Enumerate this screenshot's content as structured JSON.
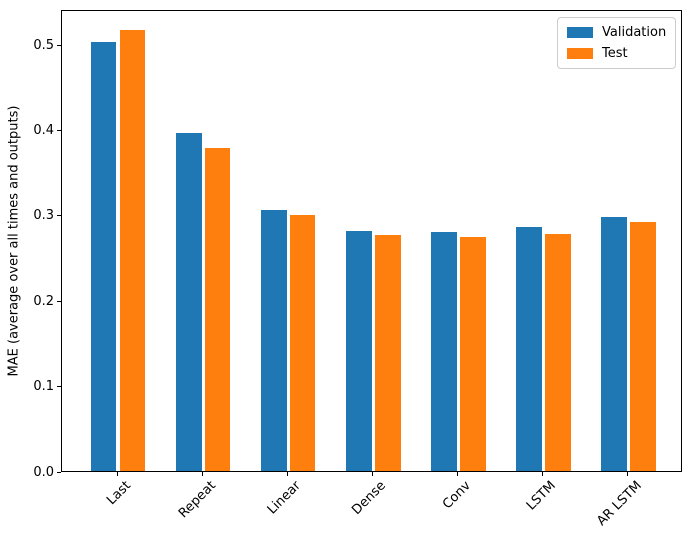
{
  "figure": {
    "background": "#ffffff"
  },
  "chart_data": {
    "type": "bar",
    "title": "",
    "categories": [
      "Last",
      "Repeat",
      "Linear",
      "Dense",
      "Conv",
      "LSTM",
      "AR LSTM"
    ],
    "series": [
      {
        "name": "Validation",
        "color": "#1f77b4",
        "values": [
          0.502,
          0.396,
          0.306,
          0.281,
          0.28,
          0.286,
          0.298
        ]
      },
      {
        "name": "Test",
        "color": "#ff7f0e",
        "values": [
          0.516,
          0.378,
          0.3,
          0.276,
          0.274,
          0.277,
          0.292
        ]
      }
    ],
    "xlabel": "",
    "ylabel": "MAE (average over all times and outputs)",
    "ylim": [
      0,
      0.541
    ],
    "xlim": [
      -0.66,
      6.64
    ],
    "yticks": [
      0.0,
      0.1,
      0.2,
      0.3,
      0.4,
      0.5
    ],
    "ytick_labels": [
      "0.0",
      "0.1",
      "0.2",
      "0.3",
      "0.4",
      "0.5"
    ],
    "x_tick_rotation": 45,
    "bar_width": 0.3,
    "bar_offsets": [
      -0.17,
      0.17
    ],
    "grid": false,
    "legend": {
      "position": "upper right",
      "entries": [
        "Validation",
        "Test"
      ]
    }
  }
}
